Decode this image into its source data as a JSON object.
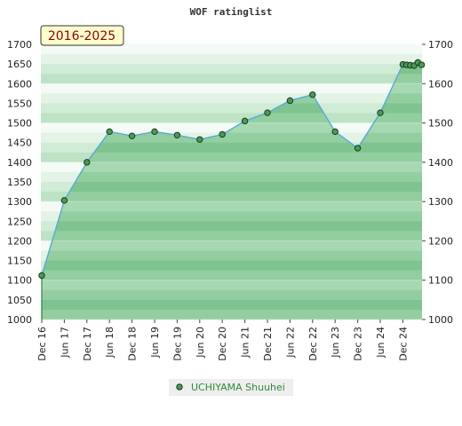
{
  "chart_data": {
    "type": "area",
    "title": "WOF ratinglist",
    "period_label": "2016-2025",
    "xlabel": "",
    "ylabel": "",
    "ylim": [
      1000,
      1700
    ],
    "y_ticks_left": [
      1000,
      1050,
      1100,
      1150,
      1200,
      1250,
      1300,
      1350,
      1400,
      1450,
      1500,
      1550,
      1600,
      1650,
      1700
    ],
    "y_ticks_right": [
      1000,
      1100,
      1200,
      1300,
      1400,
      1500,
      1600,
      1700
    ],
    "x_tick_labels": [
      "Dec 16",
      "Jun 17",
      "Dec 17",
      "Jun 18",
      "Dec 18",
      "Jun 19",
      "Dec 19",
      "Jun 20",
      "Dec 20",
      "Jun 21",
      "Dec 21",
      "Jun 22",
      "Dec 22",
      "Jun 23",
      "Dec 23",
      "Jun 24",
      "Dec 24"
    ],
    "grid": true,
    "legend_position": "bottom-center",
    "series": [
      {
        "name": "UCHIYAMA Shuuhei",
        "color": "#4a9a5a",
        "points": [
          {
            "x": "Dec 16",
            "y": 1112
          },
          {
            "x": "Jun 17",
            "y": 1303
          },
          {
            "x": "Dec 17",
            "y": 1400
          },
          {
            "x": "Jun 18",
            "y": 1478
          },
          {
            "x": "Dec 18",
            "y": 1467
          },
          {
            "x": "Jun 19",
            "y": 1478
          },
          {
            "x": "Dec 19",
            "y": 1469
          },
          {
            "x": "Jun 20",
            "y": 1458
          },
          {
            "x": "Dec 20",
            "y": 1471
          },
          {
            "x": "Jun 21",
            "y": 1505
          },
          {
            "x": "Dec 21",
            "y": 1526
          },
          {
            "x": "Jun 22",
            "y": 1557
          },
          {
            "x": "Dec 22",
            "y": 1572
          },
          {
            "x": "Jun 23",
            "y": 1478
          },
          {
            "x": "Dec 23",
            "y": 1436
          },
          {
            "x": "Jun 24",
            "y": 1526
          },
          {
            "x": "Dec 24",
            "y": 1649
          },
          {
            "x": "Jan 25",
            "y": 1648
          },
          {
            "x": "Feb 25",
            "y": 1647
          },
          {
            "x": "Mar 25",
            "y": 1646
          },
          {
            "x": "Apr 25",
            "y": 1654
          },
          {
            "x": "May 25",
            "y": 1648
          }
        ]
      }
    ]
  }
}
